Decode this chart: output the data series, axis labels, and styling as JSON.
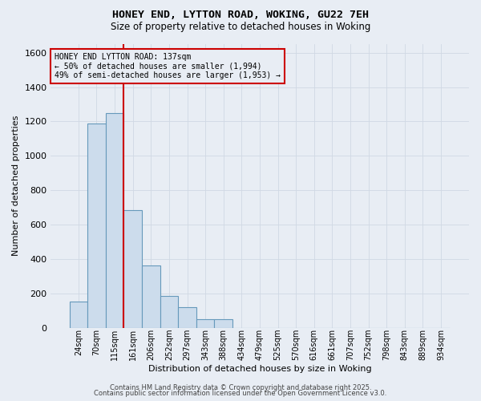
{
  "title_line1": "HONEY END, LYTTON ROAD, WOKING, GU22 7EH",
  "title_line2": "Size of property relative to detached houses in Woking",
  "xlabel": "Distribution of detached houses by size in Woking",
  "ylabel": "Number of detached properties",
  "categories": [
    "24sqm",
    "70sqm",
    "115sqm",
    "161sqm",
    "206sqm",
    "252sqm",
    "297sqm",
    "343sqm",
    "388sqm",
    "434sqm",
    "479sqm",
    "525sqm",
    "570sqm",
    "616sqm",
    "661sqm",
    "707sqm",
    "752sqm",
    "798sqm",
    "843sqm",
    "889sqm",
    "934sqm"
  ],
  "values": [
    150,
    1190,
    1250,
    685,
    360,
    185,
    120,
    50,
    50,
    0,
    0,
    0,
    0,
    0,
    0,
    0,
    0,
    0,
    0,
    0,
    0
  ],
  "bar_color": "#ccdcec",
  "bar_edge_color": "#6699bb",
  "background_color": "#e8edf4",
  "grid_color": "#d0d8e4",
  "annotation_box_color": "#cc0000",
  "annotation_text": "HONEY END LYTTON ROAD: 137sqm\n← 50% of detached houses are smaller (1,994)\n49% of semi-detached houses are larger (1,953) →",
  "vline_color": "#cc0000",
  "ylim": [
    0,
    1650
  ],
  "yticks": [
    0,
    200,
    400,
    600,
    800,
    1000,
    1200,
    1400,
    1600
  ],
  "footnote1": "Contains HM Land Registry data © Crown copyright and database right 2025.",
  "footnote2": "Contains public sector information licensed under the Open Government Licence v3.0."
}
